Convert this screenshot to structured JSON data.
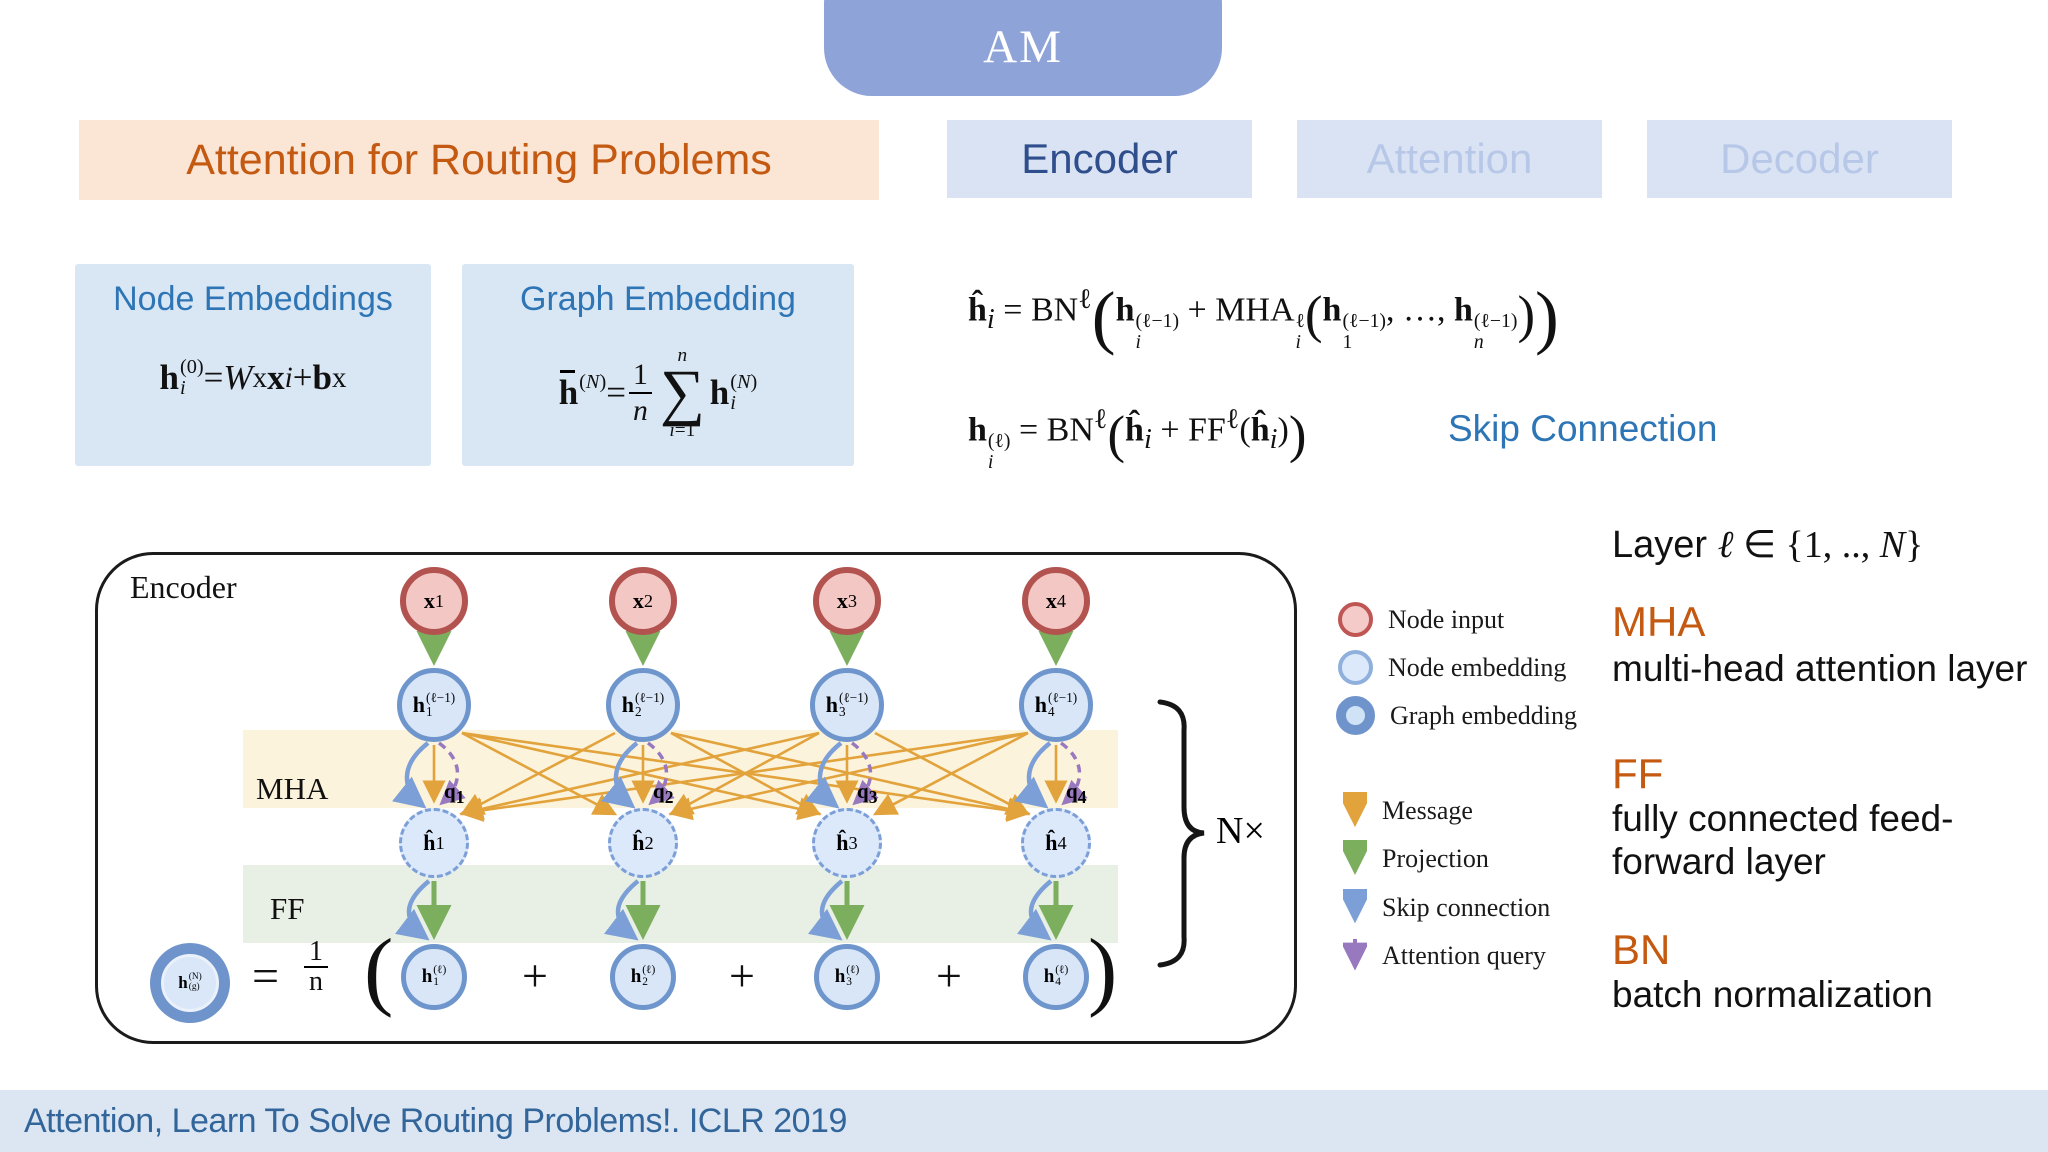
{
  "am_badge": {
    "label": "AM"
  },
  "header": {
    "title": "Attention for Routing Problems",
    "tabs": [
      {
        "label": "Encoder",
        "active": true
      },
      {
        "label": "Attention",
        "active": false
      },
      {
        "label": "Decoder",
        "active": false
      }
    ]
  },
  "boxes": {
    "node": {
      "title": "Node Embeddings",
      "formula": "<b>h</b><span class='ss'><span>(0)</span><span><i>i</i></span></span> = <i>W</i><sup>x</sup><b>x</b><sub><i>i</i></sub> + <b>b</b><sup>x</sup>"
    },
    "graph": {
      "title": "Graph Embedding",
      "formula": "<span class='hb'><b>h</b></span><span class='ss'><span>(<i>N</i>)</span><span>&nbsp;</span></span> = <span class='frac'><span>1</span><span><i>n</i></span></span><span class='sum'><span class='sl'><i>n</i></span><span class='sg'>∑</span><span class='sl'><i>i</i>=1</span></span><b>h</b><span class='ss'><span>(<i>N</i>)</span><span><i>i</i></span></span>"
    }
  },
  "equations": {
    "eq1": "<b>ĥ</b><sub><i>i</i></sub> = BN<sup>ℓ</sup><span class='bp1'>(</span><b>h</b><span class='ss'><span>(ℓ−1)</span><span><i>i</i></span></span> + MHA<span class='ss'><span>ℓ</span><span><i>i</i></span></span><span class='bp2'>(</span><b>h</b><span class='ss'><span>(ℓ−1)</span><span>1</span></span>, …, <b>h</b><span class='ss'><span>(ℓ−1)</span><span><i>n</i></span></span><span class='bp2'>)</span><span class='bp1'>)</span>",
    "eq2": "<b>h</b><span class='ss'><span>(ℓ)</span><span><i>i</i></span></span> = BN<sup>ℓ</sup><span class='bp2'>(</span><b>ĥ</b><sub><i>i</i></sub> + FF<sup>ℓ</sup>(<b>ĥ</b><sub><i>i</i></sub>)<span class='bp2'>)</span>",
    "skip_label": "Skip Connection"
  },
  "diagram": {
    "panel_label": "Encoder",
    "mha_label": "MHA",
    "ff_label": "FF",
    "n_times": "N×",
    "columns": [
      {
        "x": "<b>x</b><sub>1</sub>",
        "h_prev": "<b>h</b><span class='ss'><span>(ℓ−1)</span><span>1</span></span>",
        "q": "<b>q</b><sub>1</sub>",
        "h_hat": "<b>ĥ</b><sub>1</sub>",
        "h_out": "<b>h</b><span class='ss'><span>(ℓ)</span><span>1</span></span>"
      },
      {
        "x": "<b>x</b><sub>2</sub>",
        "h_prev": "<b>h</b><span class='ss'><span>(ℓ−1)</span><span>2</span></span>",
        "q": "<b>q</b><sub>2</sub>",
        "h_hat": "<b>ĥ</b><sub>2</sub>",
        "h_out": "<b>h</b><span class='ss'><span>(ℓ)</span><span>2</span></span>"
      },
      {
        "x": "<b>x</b><sub>3</sub>",
        "h_prev": "<b>h</b><span class='ss'><span>(ℓ−1)</span><span>3</span></span>",
        "q": "<b>q</b><sub>3</sub>",
        "h_hat": "<b>ĥ</b><sub>3</sub>",
        "h_out": "<b>h</b><span class='ss'><span>(ℓ)</span><span>3</span></span>"
      },
      {
        "x": "<b>x</b><sub>4</sub>",
        "h_prev": "<b>h</b><span class='ss'><span>(ℓ−1)</span><span>4</span></span>",
        "q": "<b>q</b><sub>4</sub>",
        "h_hat": "<b>ĥ</b><sub>4</sub>",
        "h_out": "<b>h</b><span class='ss'><span>(ℓ)</span><span>4</span></span>"
      }
    ],
    "graph_node": "<b>h</b><span class='ss'><span>(N)</span><span>(g)</span></span>",
    "bottom_eq": {
      "equals": "=",
      "frac_top": "1",
      "frac_bot": "n",
      "open": "(",
      "plus": "+",
      "close": ")"
    }
  },
  "legend": {
    "nodes": [
      {
        "label": "Node input"
      },
      {
        "label": "Node embedding"
      },
      {
        "label": "Graph embedding"
      }
    ],
    "arrows": [
      {
        "label": "Message",
        "color": "#E2A33C"
      },
      {
        "label": "Projection",
        "color": "#7BAE5D"
      },
      {
        "label": "Skip connection",
        "color": "#7B9FD6"
      },
      {
        "label": "Attention query",
        "color": "#9878BE"
      }
    ]
  },
  "definitions": {
    "layer": "Layer <span class='mi'><i>ℓ</i> ∈ {1, .., <i>N</i>}</span>",
    "items": [
      {
        "abbr": "MHA",
        "desc": "multi-head attention layer"
      },
      {
        "abbr": "FF",
        "desc": "fully connected feed-forward layer"
      },
      {
        "abbr": "BN",
        "desc": "batch normalization"
      }
    ]
  },
  "footer": {
    "citation": "Attention, Learn To Solve Routing Problems!. ICLR 2019"
  },
  "colors": {
    "accent_orange": "#C45911",
    "accent_blue": "#2E75B6",
    "badge_blue": "#8EA4D8",
    "tab_bg": "#DAE3F3",
    "tab_active_text": "#2F4E8C",
    "tab_inactive_text": "#B7C7E8",
    "title_bg": "#FBE5D5",
    "box_bg": "#D9E6F4",
    "mha_band": "#FCF3DC",
    "ff_band": "#E8EFE4",
    "node_input_fill": "#F2C7C4",
    "node_input_border": "#B25350",
    "node_emb_fill": "#D9E6F8",
    "node_emb_border": "#6E96CC",
    "message": "#E2A33C",
    "projection": "#7BAE5D",
    "skip": "#7B9FD6",
    "query": "#9878BE",
    "footer_bg": "#DCE6F3",
    "footer_text": "#32669B"
  }
}
